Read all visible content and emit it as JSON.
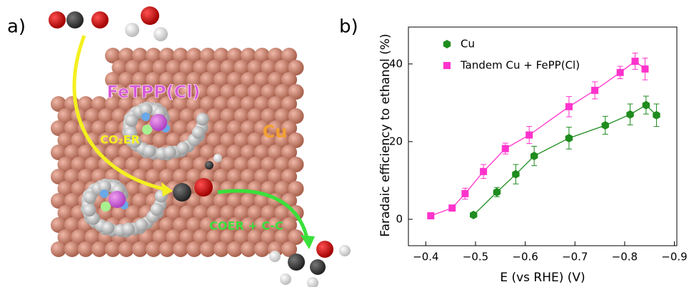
{
  "panel_a": {
    "label": "a)",
    "labels": {
      "catalyst": "FeTPP(Cl)",
      "step1": "CO₂ER",
      "metal": "Cu",
      "step2": "COER + C-C"
    }
  },
  "chart_data": {
    "type": "scatter",
    "panel_label": "b)",
    "xlabel": "E (vs RHE) (V)",
    "ylabel": "Faradaic efficiency to ethanol (%)",
    "xlim": [
      -0.365,
      -0.905
    ],
    "ylim": [
      -6.8,
      49.5
    ],
    "xticks": [
      {
        "value": -0.4,
        "label": "−0.4"
      },
      {
        "value": -0.5,
        "label": "−0.5"
      },
      {
        "value": -0.6,
        "label": "−0.6"
      },
      {
        "value": -0.7,
        "label": "−0.7"
      },
      {
        "value": -0.8,
        "label": "−0.8"
      },
      {
        "value": -0.9,
        "label": "−0.9"
      }
    ],
    "yticks": [
      0,
      20,
      40
    ],
    "legend": "upper left",
    "series": [
      {
        "name": "Cu",
        "color": "#1e8c1e",
        "marker": "hexagon",
        "x": [
          -0.496,
          -0.543,
          -0.581,
          -0.618,
          -0.688,
          -0.761,
          -0.811,
          -0.843,
          -0.864
        ],
        "values": [
          1.1,
          7.0,
          11.6,
          16.3,
          20.9,
          24.2,
          27.0,
          29.4,
          26.8
        ],
        "errors": [
          0.3,
          1.2,
          2.5,
          2.5,
          2.8,
          2.3,
          2.7,
          2.3,
          2.9
        ]
      },
      {
        "name": "Tandem Cu + FePP(Cl)",
        "color": "#ff33cc",
        "marker": "square",
        "x": [
          -0.41,
          -0.453,
          -0.479,
          -0.516,
          -0.56,
          -0.608,
          -0.688,
          -0.74,
          -0.791,
          -0.821,
          -0.841
        ],
        "values": [
          0.9,
          2.9,
          6.6,
          12.3,
          18.2,
          21.7,
          29.0,
          33.2,
          37.8,
          40.7,
          38.7
        ],
        "errors": [
          0.3,
          0.6,
          1.4,
          1.8,
          1.4,
          2.2,
          2.6,
          2.2,
          1.6,
          2.1,
          2.8
        ]
      }
    ]
  }
}
